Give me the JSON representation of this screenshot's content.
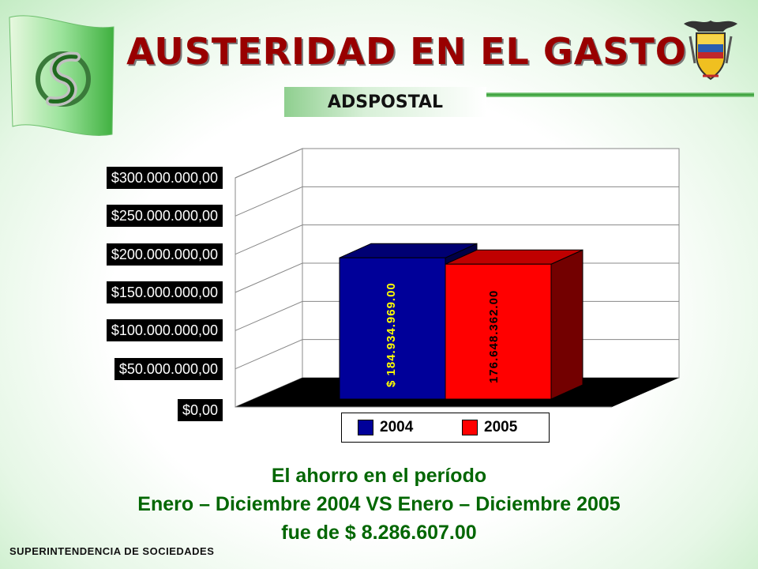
{
  "slide": {
    "title": "AUSTERIDAD EN EL GASTO",
    "subtitle": "ADSPOSTAL",
    "footer": "SUPERINTENDENCIA DE SOCIEDADES",
    "summary_lines": [
      "El ahorro en el período",
      "Enero – Diciembre 2004 VS Enero – Diciembre 2005",
      "fue de $ 8.286.607.00"
    ]
  },
  "colors": {
    "title": "#990000",
    "summary": "#006600",
    "bar_2004": "#000099",
    "bar_2005": "#ff0000",
    "label_2004": "#ffff00",
    "label_2005": "#000000"
  },
  "icons": [
    "logo-flag-icon",
    "coat-of-arms-icon"
  ],
  "chart_data": {
    "type": "bar",
    "three_d": true,
    "categories": [
      ""
    ],
    "series": [
      {
        "name": "2004",
        "values": [
          184934969.0
        ],
        "data_label": "$ 184.934.969.00",
        "color": "#000099"
      },
      {
        "name": "2005",
        "values": [
          176648362.0
        ],
        "data_label": "176.648.362.00",
        "color": "#ff0000"
      }
    ],
    "yticks": [
      0,
      50000000,
      100000000,
      150000000,
      200000000,
      250000000,
      300000000
    ],
    "ytick_labels": [
      "$0,00",
      "$50.000.000,00",
      "$100.000.000,00",
      "$150.000.000,00",
      "$200.000.000,00",
      "$250.000.000,00",
      "$300.000.000,00"
    ],
    "ylim": [
      0,
      300000000
    ],
    "grid": true,
    "legend": "bottom",
    "title": "",
    "xlabel": "",
    "ylabel": ""
  }
}
